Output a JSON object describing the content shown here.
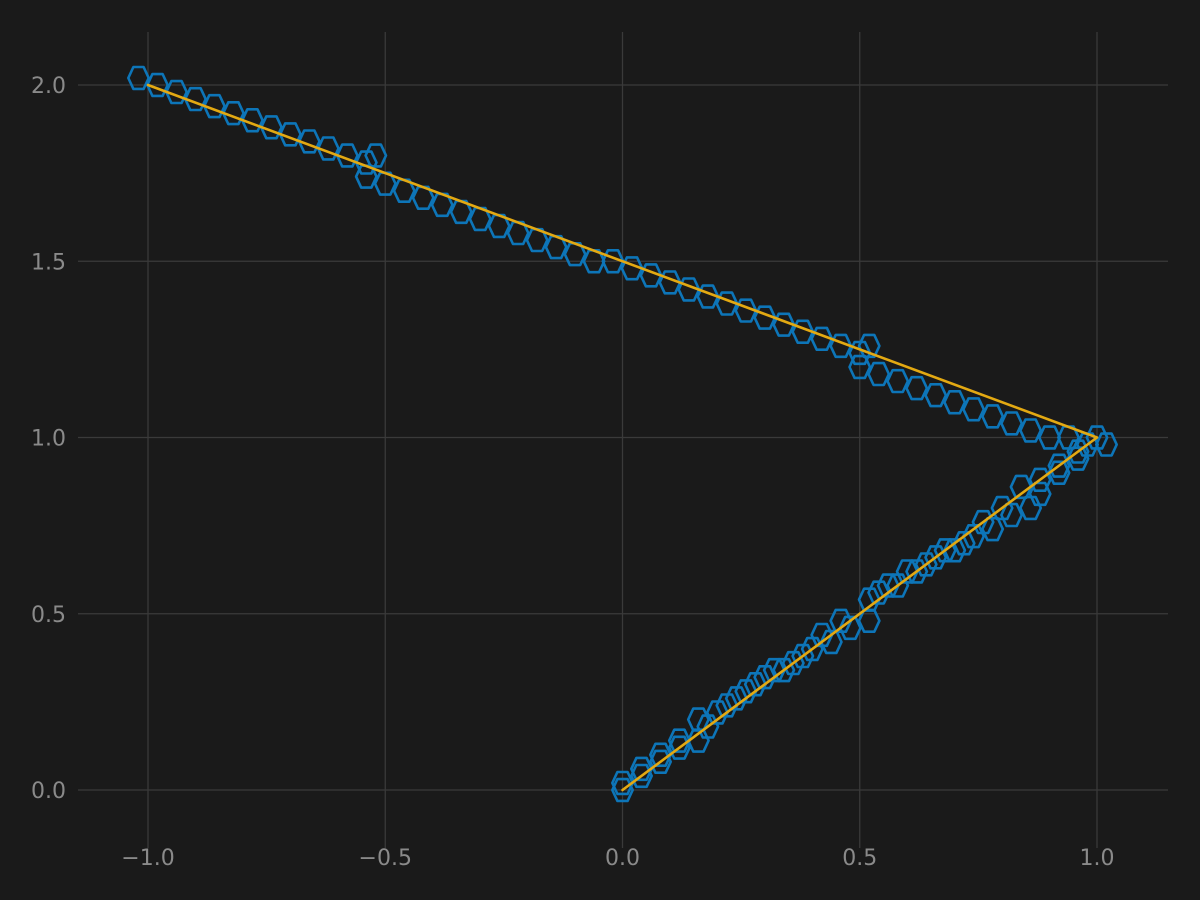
{
  "colors": {
    "background": "#1a1a1a",
    "grid": "#3a3a3a",
    "tick_text": "#8a8a8a",
    "hexbin_stroke": "#0d75b8",
    "line": "#e3a912"
  },
  "chart_data": {
    "type": "line",
    "title": "",
    "xlabel": "",
    "ylabel": "",
    "xlim": [
      -1.15,
      1.15
    ],
    "ylim": [
      -0.12,
      2.15
    ],
    "grid": true,
    "legend": "none",
    "x_ticks": [
      -1.0,
      -0.5,
      0.0,
      0.5,
      1.0
    ],
    "x_tick_labels": [
      "−1.0",
      "−0.5",
      "0.0",
      "0.5",
      "1.0"
    ],
    "y_ticks": [
      0.0,
      0.5,
      1.0,
      1.5,
      2.0
    ],
    "y_tick_labels": [
      "0.0",
      "0.5",
      "1.0",
      "1.5",
      "2.0"
    ],
    "series": [
      {
        "kind": "line",
        "x": [
          0.0,
          1.0,
          -1.0
        ],
        "y": [
          0.0,
          1.0,
          2.0
        ]
      },
      {
        "kind": "hexbin",
        "hex_size_data": [
          0.0215,
          0.031
        ],
        "centers": [
          [
            -1.02,
            2.02
          ],
          [
            -0.98,
            2.0
          ],
          [
            -0.94,
            1.98
          ],
          [
            -0.9,
            1.96
          ],
          [
            -0.86,
            1.94
          ],
          [
            -0.82,
            1.92
          ],
          [
            -0.78,
            1.9
          ],
          [
            -0.74,
            1.88
          ],
          [
            -0.7,
            1.86
          ],
          [
            -0.66,
            1.84
          ],
          [
            -0.62,
            1.82
          ],
          [
            -0.58,
            1.8
          ],
          [
            -0.54,
            1.78
          ],
          [
            -0.52,
            1.8
          ],
          [
            -0.54,
            1.74
          ],
          [
            -0.5,
            1.72
          ],
          [
            -0.46,
            1.7
          ],
          [
            -0.42,
            1.68
          ],
          [
            -0.38,
            1.66
          ],
          [
            -0.34,
            1.64
          ],
          [
            -0.3,
            1.62
          ],
          [
            -0.26,
            1.6
          ],
          [
            -0.22,
            1.58
          ],
          [
            -0.18,
            1.56
          ],
          [
            -0.14,
            1.54
          ],
          [
            -0.1,
            1.52
          ],
          [
            -0.06,
            1.5
          ],
          [
            -0.02,
            1.5
          ],
          [
            0.02,
            1.48
          ],
          [
            0.06,
            1.46
          ],
          [
            0.1,
            1.44
          ],
          [
            0.14,
            1.42
          ],
          [
            0.18,
            1.4
          ],
          [
            0.22,
            1.38
          ],
          [
            0.26,
            1.36
          ],
          [
            0.3,
            1.34
          ],
          [
            0.34,
            1.32
          ],
          [
            0.38,
            1.3
          ],
          [
            0.42,
            1.28
          ],
          [
            0.46,
            1.26
          ],
          [
            0.5,
            1.24
          ],
          [
            0.52,
            1.26
          ],
          [
            0.5,
            1.2
          ],
          [
            0.54,
            1.18
          ],
          [
            0.58,
            1.16
          ],
          [
            0.62,
            1.14
          ],
          [
            0.66,
            1.12
          ],
          [
            0.7,
            1.1
          ],
          [
            0.74,
            1.08
          ],
          [
            0.78,
            1.06
          ],
          [
            0.82,
            1.04
          ],
          [
            0.86,
            1.02
          ],
          [
            0.9,
            1.0
          ],
          [
            0.94,
            1.0
          ],
          [
            0.98,
            0.98
          ],
          [
            1.02,
            0.98
          ],
          [
            0.96,
            0.96
          ],
          [
            0.92,
            0.92
          ],
          [
            0.88,
            0.88
          ],
          [
            0.84,
            0.86
          ],
          [
            0.86,
            0.8
          ],
          [
            0.82,
            0.78
          ],
          [
            0.78,
            0.74
          ],
          [
            0.74,
            0.72
          ],
          [
            0.7,
            0.68
          ],
          [
            0.66,
            0.66
          ],
          [
            0.62,
            0.62
          ],
          [
            0.58,
            0.58
          ],
          [
            0.54,
            0.56
          ],
          [
            0.52,
            0.54
          ],
          [
            0.52,
            0.48
          ],
          [
            0.48,
            0.46
          ],
          [
            0.44,
            0.42
          ],
          [
            0.4,
            0.4
          ],
          [
            0.36,
            0.36
          ],
          [
            0.32,
            0.34
          ],
          [
            0.28,
            0.3
          ],
          [
            0.24,
            0.26
          ],
          [
            0.2,
            0.22
          ],
          [
            0.16,
            0.2
          ],
          [
            0.16,
            0.14
          ],
          [
            0.12,
            0.12
          ],
          [
            0.08,
            0.08
          ],
          [
            0.04,
            0.04
          ],
          [
            0.0,
            0.02
          ],
          [
            0.0,
            0.0
          ],
          [
            0.04,
            0.06
          ],
          [
            0.08,
            0.1
          ],
          [
            0.12,
            0.14
          ],
          [
            0.18,
            0.18
          ],
          [
            0.22,
            0.24
          ],
          [
            0.26,
            0.28
          ],
          [
            0.3,
            0.32
          ],
          [
            0.34,
            0.34
          ],
          [
            0.38,
            0.38
          ],
          [
            0.42,
            0.44
          ],
          [
            0.46,
            0.48
          ],
          [
            0.56,
            0.58
          ],
          [
            0.6,
            0.62
          ],
          [
            0.64,
            0.64
          ],
          [
            0.68,
            0.68
          ],
          [
            0.72,
            0.7
          ],
          [
            0.76,
            0.76
          ],
          [
            0.8,
            0.8
          ],
          [
            0.88,
            0.84
          ],
          [
            0.92,
            0.9
          ],
          [
            0.96,
            0.94
          ],
          [
            1.0,
            1.0
          ]
        ]
      }
    ]
  }
}
